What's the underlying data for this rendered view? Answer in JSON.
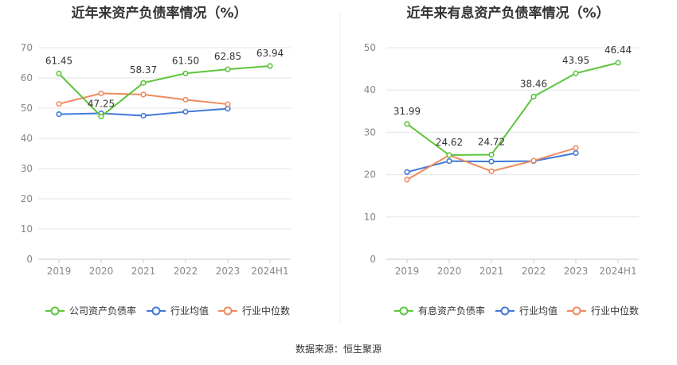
{
  "source_note": "数据来源：恒生聚源",
  "chart_data": [
    {
      "type": "line",
      "title": "近年来资产负债率情况（%）",
      "categories": [
        "2019",
        "2020",
        "2021",
        "2022",
        "2023",
        "2024H1"
      ],
      "ylim": [
        0,
        70
      ],
      "yticks": [
        0,
        10,
        20,
        30,
        40,
        50,
        60,
        70
      ],
      "grid": true,
      "legend_position": "bottom",
      "series": [
        {
          "name": "公司资产负债率",
          "color": "#5cc53a",
          "values": [
            61.45,
            47.25,
            58.37,
            61.5,
            62.85,
            63.94
          ],
          "labels": [
            "61.45",
            "47.25",
            "58.37",
            "61.50",
            "62.85",
            "63.94"
          ]
        },
        {
          "name": "行业均值",
          "color": "#3f78d8",
          "values": [
            48.0,
            48.3,
            47.5,
            48.8,
            49.8,
            null
          ]
        },
        {
          "name": "行业中位数",
          "color": "#ef8a5e",
          "values": [
            51.4,
            54.9,
            54.5,
            52.8,
            51.3,
            null
          ]
        }
      ]
    },
    {
      "type": "line",
      "title": "近年来有息资产负债率情况（%）",
      "categories": [
        "2019",
        "2020",
        "2021",
        "2022",
        "2023",
        "2024H1"
      ],
      "ylim": [
        0,
        50
      ],
      "yticks": [
        0,
        10,
        20,
        30,
        40,
        50
      ],
      "grid": true,
      "legend_position": "bottom",
      "series": [
        {
          "name": "有息资产负债率",
          "color": "#5cc53a",
          "values": [
            31.99,
            24.62,
            24.72,
            38.46,
            43.95,
            46.44
          ],
          "labels": [
            "31.99",
            "24.62",
            "24.72",
            "38.46",
            "43.95",
            "46.44"
          ]
        },
        {
          "name": "行业均值",
          "color": "#3f78d8",
          "values": [
            20.6,
            23.2,
            23.1,
            23.2,
            25.1,
            null
          ]
        },
        {
          "name": "行业中位数",
          "color": "#ef8a5e",
          "values": [
            18.8,
            24.6,
            20.8,
            23.3,
            26.3,
            null
          ]
        }
      ]
    }
  ]
}
